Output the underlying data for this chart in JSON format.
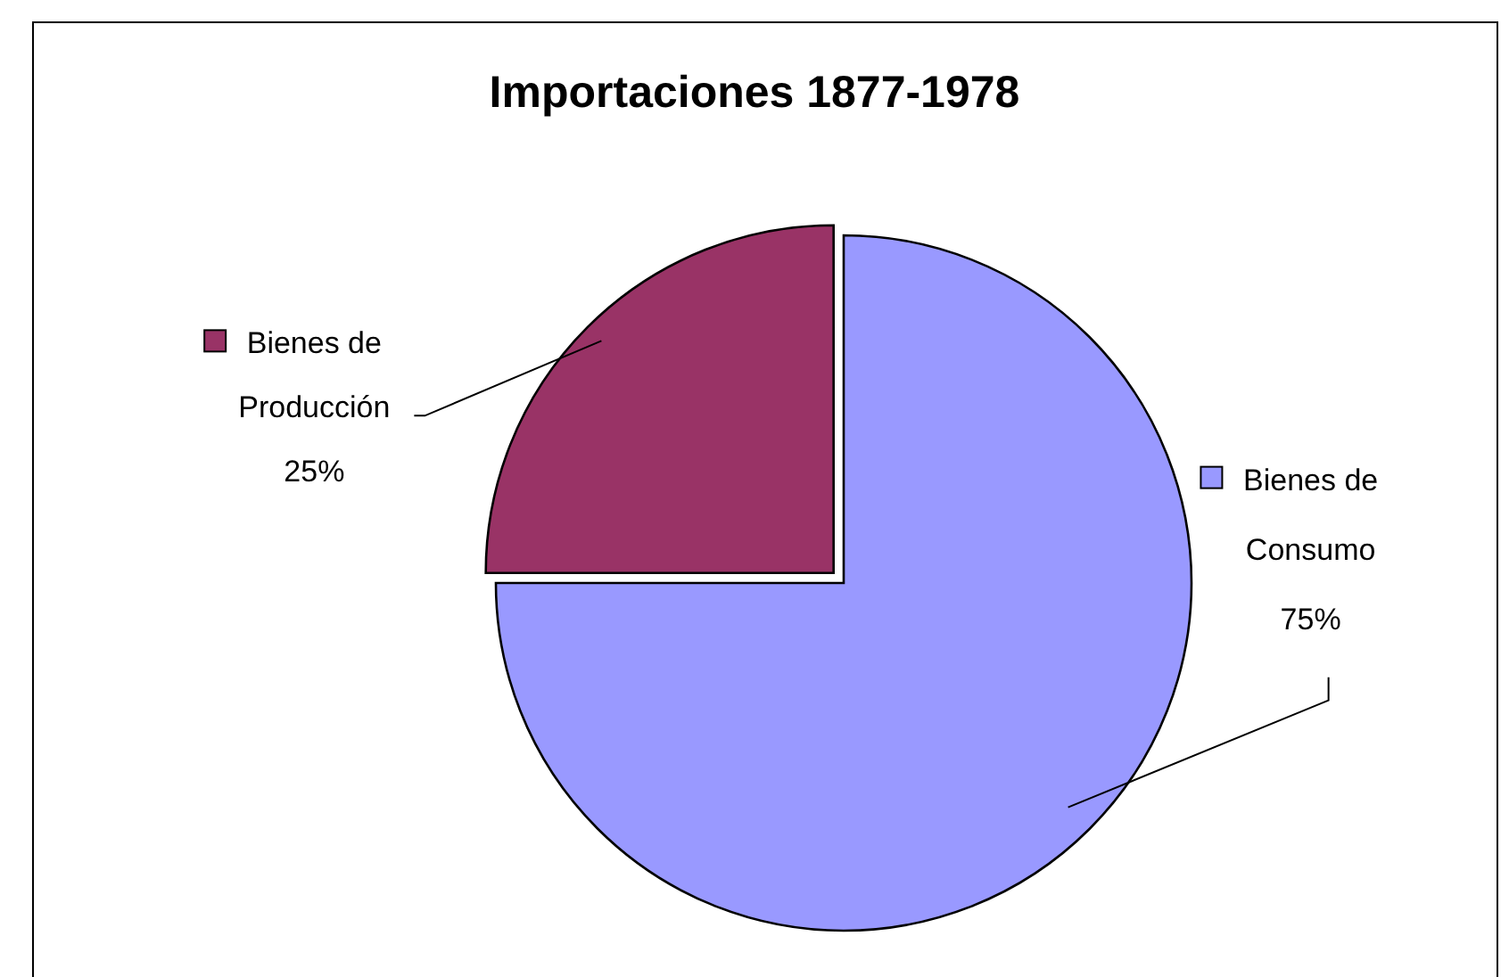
{
  "chart_data": {
    "type": "pie",
    "title": "Importaciones 1877-1978",
    "categories": [
      "Bienes de Consumo",
      "Bienes de Producción"
    ],
    "values": [
      75,
      25
    ],
    "colors": [
      "#9999ff",
      "#993366"
    ],
    "value_labels": [
      "75%",
      "25%"
    ],
    "legend": "top left"
  }
}
